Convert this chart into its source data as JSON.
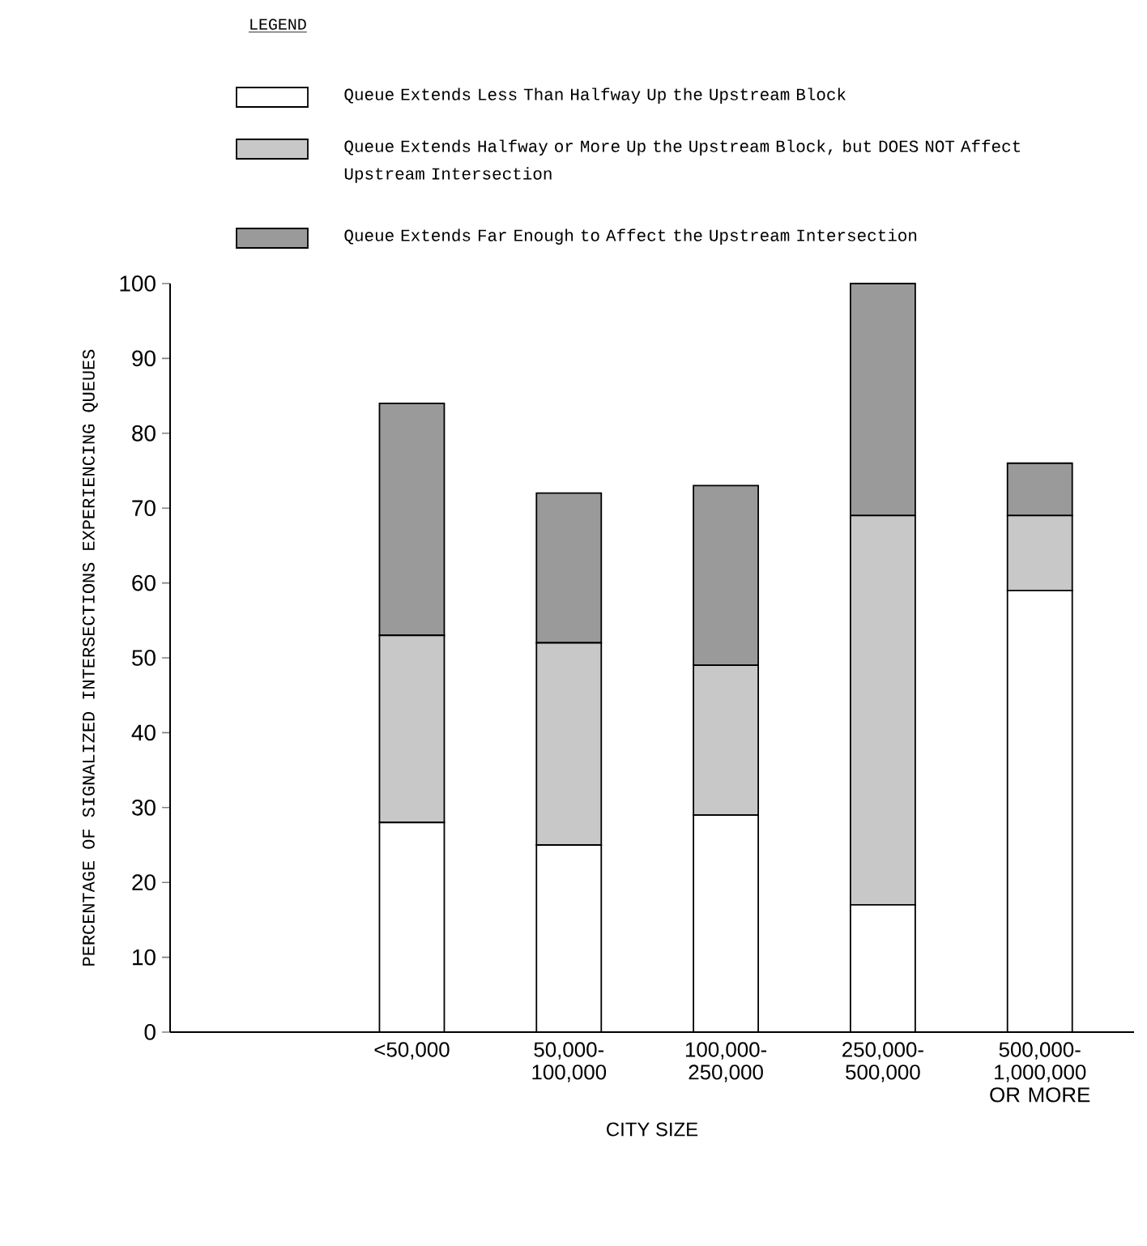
{
  "chart_data": {
    "type": "bar",
    "stacked": true,
    "legend": "top",
    "legend_title": "LEGEND",
    "xlabel": "CITY SIZE",
    "ylabel": "PERCENTAGE OF SIGNALIZED INTERSECTIONS EXPERIENCING QUEUES",
    "categories": [
      "<50,000",
      "50,000- 100,000",
      "100,000- 250,000",
      "250,000- 500,000",
      "500,000- 1,000,000 OR MORE"
    ],
    "ylim": [
      0,
      100
    ],
    "yticks": [
      0,
      10,
      20,
      30,
      40,
      50,
      60,
      70,
      80,
      90,
      100
    ],
    "series": [
      {
        "name": "Queue Extends Less Than Halfway Up the Upstream Block",
        "color": "#ffffff",
        "values": [
          28,
          25,
          29,
          17,
          59
        ]
      },
      {
        "name": "Queue Extends Halfway or More Up the Upstream Block, but DOES NOT Affect Upstream Intersection",
        "color": "#c8c8c8",
        "values": [
          25,
          27,
          20,
          52,
          10
        ]
      },
      {
        "name": "Queue Extends Far Enough to Affect the Upstream Intersection",
        "color": "#9a9a9a",
        "values": [
          31,
          20,
          24,
          31,
          7
        ]
      }
    ]
  }
}
